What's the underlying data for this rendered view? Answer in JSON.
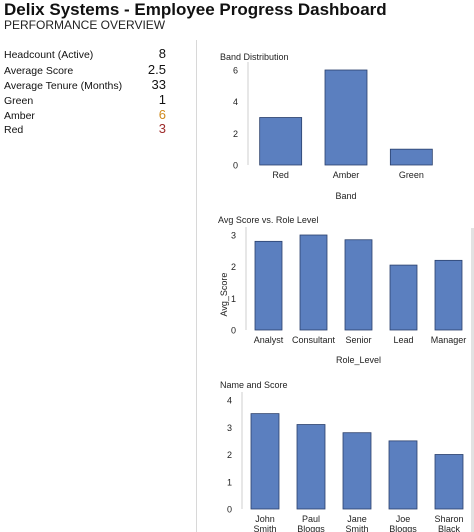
{
  "header": {
    "title": "Delix Systems - Employee Progress Dashboard",
    "subtitle": "PERFORMANCE OVERVIEW"
  },
  "kpis": [
    {
      "label": "Headcount (Active)",
      "value": "8",
      "color": "#111111"
    },
    {
      "label": "Average Score",
      "value": "2.5",
      "color": "#111111"
    },
    {
      "label": "Average Tenure (Months)",
      "value": "33",
      "color": "#111111"
    },
    {
      "label": "Green",
      "value": "1",
      "color": "#111111"
    },
    {
      "label": "Amber",
      "value": "6",
      "color": "#d08a1c"
    },
    {
      "label": "Red",
      "value": "3",
      "color": "#9e2b2b"
    }
  ],
  "colors": {
    "bar": "#5b7fbf",
    "bar_stroke": "#2a3f6b"
  },
  "chart_data": [
    {
      "type": "bar",
      "title": "Band Distribution",
      "categories": [
        "Red",
        "Amber",
        "Green"
      ],
      "values": [
        3,
        6,
        1
      ],
      "xlabel": "Band",
      "ylabel": "",
      "ylim": [
        0,
        6
      ],
      "yticks": [
        0,
        2,
        4,
        6
      ]
    },
    {
      "type": "bar",
      "title": "Avg Score vs. Role Level",
      "categories": [
        "Analyst",
        "Consultant",
        "Senior",
        "Lead",
        "Manager"
      ],
      "values": [
        2.8,
        3.0,
        2.85,
        2.05,
        2.2
      ],
      "xlabel": "Role_Level",
      "ylabel": "Avg_Score",
      "ylim": [
        0,
        3
      ],
      "yticks": [
        0,
        1,
        2,
        3
      ]
    },
    {
      "type": "bar",
      "title": "Name and Score",
      "categories": [
        [
          "John",
          "Smith"
        ],
        [
          "Paul",
          "Bloggs"
        ],
        [
          "Jane",
          "Smith"
        ],
        [
          "Joe",
          "Bloggs"
        ],
        [
          "Sharon",
          "Black"
        ]
      ],
      "values": [
        3.5,
        3.1,
        2.8,
        2.5,
        2.0
      ],
      "xlabel": "",
      "ylabel": "",
      "ylim": [
        0,
        4
      ],
      "yticks": [
        0,
        1,
        2,
        3,
        4
      ]
    }
  ]
}
